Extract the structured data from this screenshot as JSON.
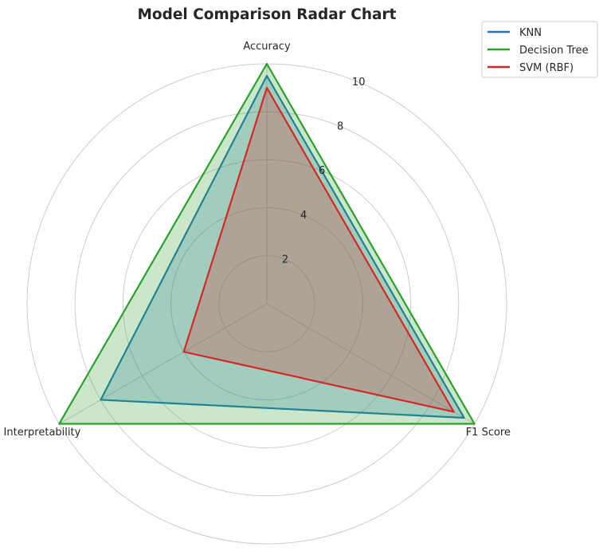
{
  "chart_data": {
    "type": "radar",
    "title": "Model Comparison Radar Chart",
    "axes": [
      "Accuracy",
      "F1 Score",
      "Interpretability"
    ],
    "radial_ticks": [
      "2",
      "4",
      "6",
      "8",
      "10"
    ],
    "rlim": [
      0,
      10
    ],
    "grid": true,
    "legend_position": "top-right",
    "series": [
      {
        "name": "KNN",
        "color": "#1f77b4",
        "values": [
          9.5,
          9.5,
          8.0
        ]
      },
      {
        "name": "Decision Tree",
        "color": "#2ca02c",
        "values": [
          10.0,
          10.0,
          10.0
        ]
      },
      {
        "name": "SVM (RBF)",
        "color": "#d62728",
        "values": [
          9.0,
          9.0,
          4.0
        ]
      }
    ]
  }
}
